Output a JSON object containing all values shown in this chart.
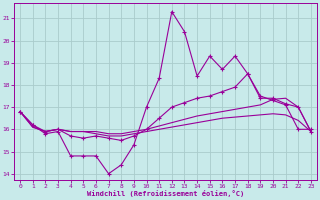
{
  "background_color": "#c8eaea",
  "grid_color": "#aacccc",
  "line_color": "#990099",
  "xlim": [
    -0.5,
    23.5
  ],
  "ylim": [
    13.7,
    21.7
  ],
  "xticks": [
    0,
    1,
    2,
    3,
    4,
    5,
    6,
    7,
    8,
    9,
    10,
    11,
    12,
    13,
    14,
    15,
    16,
    17,
    18,
    19,
    20,
    21,
    22,
    23
  ],
  "yticks": [
    14,
    15,
    16,
    17,
    18,
    19,
    20,
    21
  ],
  "xlabel": "Windchill (Refroidissement éolien,°C)",
  "curve_zigzag": [
    16.8,
    16.2,
    15.8,
    15.9,
    14.8,
    14.8,
    14.8,
    14.0,
    14.4,
    15.3,
    17.0,
    18.3,
    21.3,
    20.4,
    18.4,
    19.3,
    18.7,
    19.3,
    18.5,
    17.5,
    17.3,
    17.1,
    16.0,
    16.0
  ],
  "curve_rise": [
    16.8,
    16.2,
    15.9,
    16.0,
    15.7,
    15.6,
    15.7,
    15.6,
    15.5,
    15.7,
    16.0,
    16.5,
    17.0,
    17.2,
    17.4,
    17.5,
    17.7,
    17.9,
    18.5,
    17.4,
    17.4,
    17.15,
    17.0,
    15.9
  ],
  "curve_flat1": [
    16.8,
    16.1,
    15.9,
    16.0,
    15.9,
    15.9,
    15.9,
    15.8,
    15.8,
    15.9,
    16.0,
    16.15,
    16.3,
    16.45,
    16.6,
    16.7,
    16.8,
    16.9,
    17.0,
    17.1,
    17.35,
    17.4,
    17.0,
    15.9
  ],
  "curve_flat2": [
    16.8,
    16.1,
    15.9,
    16.0,
    15.9,
    15.9,
    15.8,
    15.7,
    15.7,
    15.8,
    15.9,
    16.0,
    16.1,
    16.2,
    16.3,
    16.4,
    16.5,
    16.55,
    16.6,
    16.65,
    16.7,
    16.65,
    16.4,
    15.9
  ]
}
